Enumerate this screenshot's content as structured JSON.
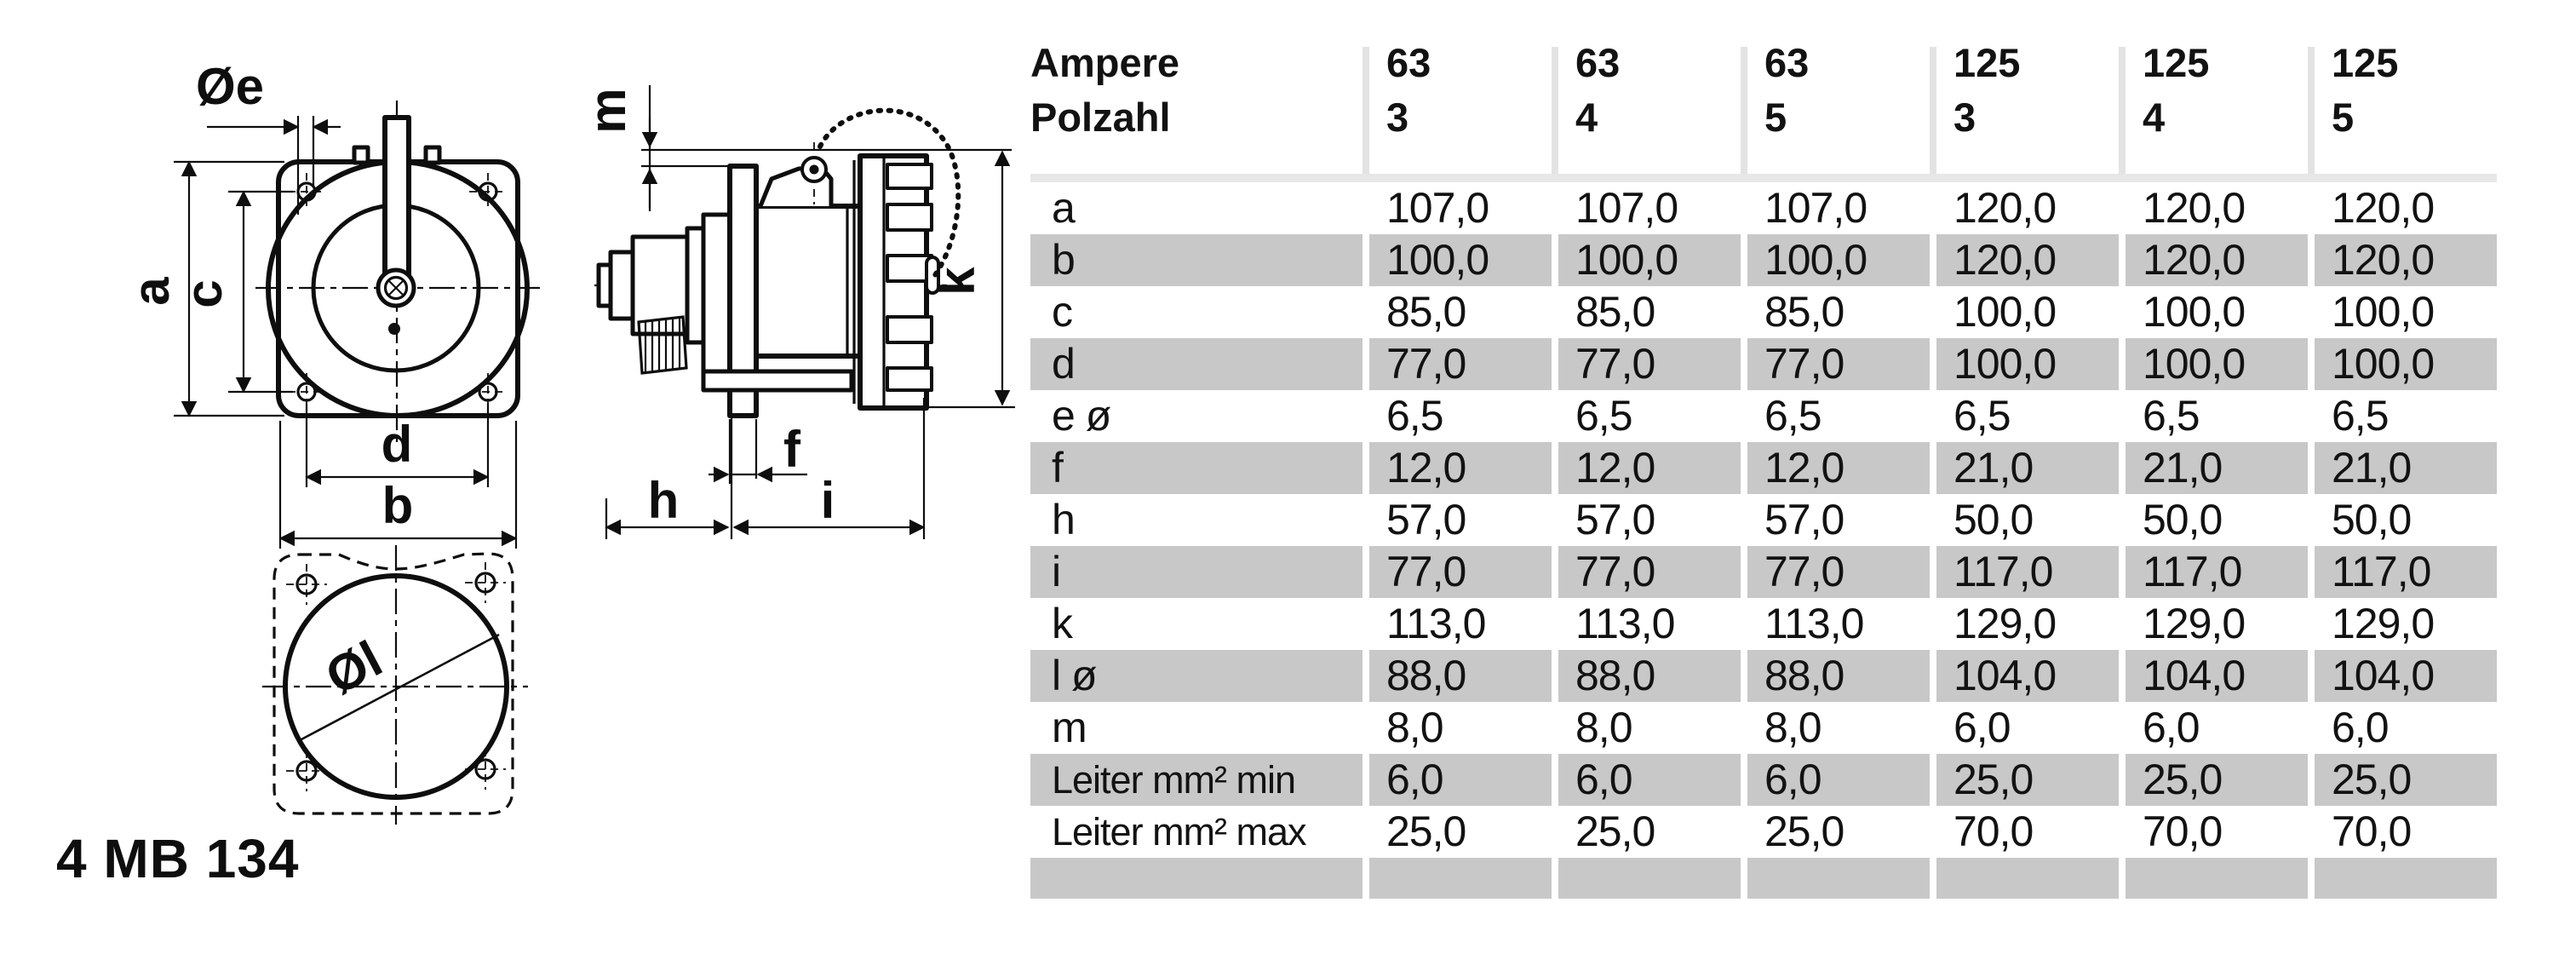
{
  "part_number": "4 MB 134",
  "drawing": {
    "front_view_labels": {
      "oe": "Øe",
      "a": "a",
      "c": "c",
      "d": "d",
      "b": "b"
    },
    "side_view_labels": {
      "m": "m",
      "k": "k",
      "f": "f",
      "h": "h",
      "i": "i"
    },
    "gasket_label": {
      "ol": "Øl"
    }
  },
  "table": {
    "header": {
      "row1": [
        "Ampere",
        "63",
        "63",
        "63",
        "125",
        "125",
        "125"
      ],
      "row2": [
        "Polzahl",
        "3",
        "4",
        "5",
        "3",
        "4",
        "5"
      ]
    },
    "rows": [
      {
        "label": "a",
        "shaded": false,
        "values": [
          "107,0",
          "107,0",
          "107,0",
          "120,0",
          "120,0",
          "120,0"
        ]
      },
      {
        "label": "b",
        "shaded": true,
        "values": [
          "100,0",
          "100,0",
          "100,0",
          "120,0",
          "120,0",
          "120,0"
        ]
      },
      {
        "label": "c",
        "shaded": false,
        "values": [
          "85,0",
          "85,0",
          "85,0",
          "100,0",
          "100,0",
          "100,0"
        ]
      },
      {
        "label": "d",
        "shaded": true,
        "values": [
          "77,0",
          "77,0",
          "77,0",
          "100,0",
          "100,0",
          "100,0"
        ]
      },
      {
        "label": "e ø",
        "shaded": false,
        "values": [
          "6,5",
          "6,5",
          "6,5",
          "6,5",
          "6,5",
          "6,5"
        ]
      },
      {
        "label": "f",
        "shaded": true,
        "values": [
          "12,0",
          "12,0",
          "12,0",
          "21,0",
          "21,0",
          "21,0"
        ]
      },
      {
        "label": "h",
        "shaded": false,
        "values": [
          "57,0",
          "57,0",
          "57,0",
          "50,0",
          "50,0",
          "50,0"
        ]
      },
      {
        "label": "i",
        "shaded": true,
        "values": [
          "77,0",
          "77,0",
          "77,0",
          "117,0",
          "117,0",
          "117,0"
        ]
      },
      {
        "label": "k",
        "shaded": false,
        "values": [
          "113,0",
          "113,0",
          "113,0",
          "129,0",
          "129,0",
          "129,0"
        ]
      },
      {
        "label": "l ø",
        "shaded": true,
        "values": [
          "88,0",
          "88,0",
          "88,0",
          "104,0",
          "104,0",
          "104,0"
        ]
      },
      {
        "label": "m",
        "shaded": false,
        "values": [
          "8,0",
          "8,0",
          "8,0",
          "6,0",
          "6,0",
          "6,0"
        ]
      },
      {
        "label": "Leiter mm² min",
        "shaded": true,
        "values": [
          "6,0",
          "6,0",
          "6,0",
          "25,0",
          "25,0",
          "25,0"
        ]
      },
      {
        "label": "Leiter mm² max",
        "shaded": false,
        "values": [
          "25,0",
          "25,0",
          "25,0",
          "70,0",
          "70,0",
          "70,0"
        ]
      }
    ],
    "empty_bottom_row": true,
    "colors": {
      "shaded_row": "#c8c8c8",
      "separator": "#e7e7e7",
      "header_gap_strip": "#e3e3e3",
      "text": "#121212"
    }
  }
}
